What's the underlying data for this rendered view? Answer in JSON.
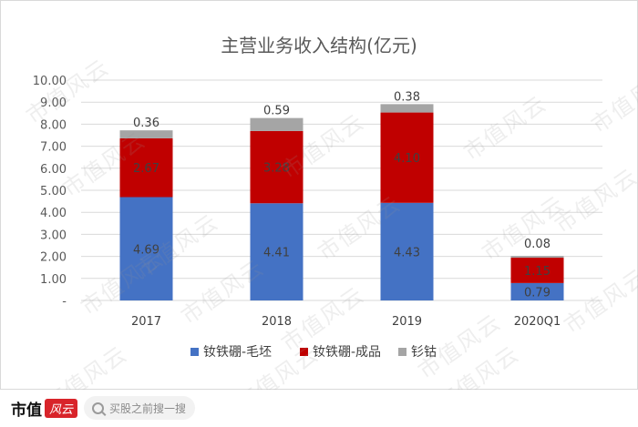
{
  "chart_data": {
    "type": "bar",
    "stacked": true,
    "title": "主营业务收入结构(亿元)",
    "categories": [
      "2017",
      "2018",
      "2019",
      "2020Q1"
    ],
    "y_ticks": [
      "10.00",
      "9.00",
      "8.00",
      "7.00",
      "6.00",
      "5.00",
      "4.00",
      "3.00",
      "2.00",
      "1.00",
      "-"
    ],
    "ylim": [
      0,
      10
    ],
    "grid": true,
    "legend_position": "bottom",
    "series": [
      {
        "name": "钕铁硼-毛坯",
        "color": "#4472c4",
        "values": [
          4.69,
          4.41,
          4.43,
          0.79
        ],
        "labels": [
          "4.69",
          "4.41",
          "4.43",
          "0.79"
        ]
      },
      {
        "name": "钕铁硼-成品",
        "color": "#c00000",
        "values": [
          2.67,
          3.28,
          4.1,
          1.15
        ],
        "labels": [
          "2.67",
          "3.28",
          "4.10",
          "1.15"
        ]
      },
      {
        "name": "钐钴",
        "color": "#a5a5a5",
        "values": [
          0.36,
          0.59,
          0.38,
          0.08
        ],
        "labels": [
          "0.36",
          "0.59",
          "0.38",
          "0.08"
        ]
      }
    ]
  },
  "watermark": "市值风云",
  "footer": {
    "brand": "市值",
    "brand_mark": "风云",
    "search_placeholder": "买股之前搜一搜"
  }
}
